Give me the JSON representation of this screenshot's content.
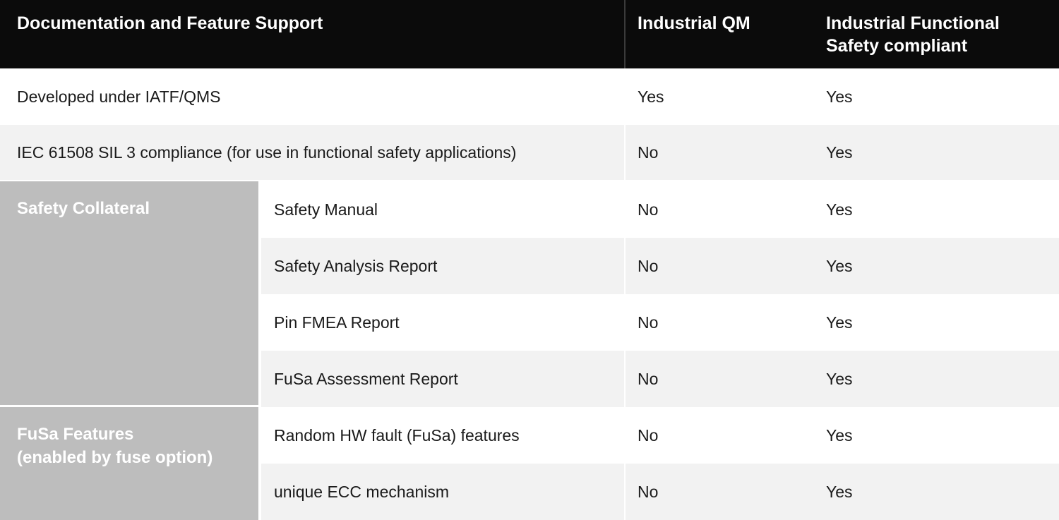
{
  "colors": {
    "header_bg": "#0b0b0b",
    "header_divider": "#3b3b3b",
    "row_stripe": "#f2f2f2",
    "group_panel": "#bdbdbd",
    "text": "#1a1a1a",
    "text_inverse": "#ffffff"
  },
  "table": {
    "header": {
      "feature_col": "Documentation and Feature Support",
      "qm_col": "Industrial QM",
      "fusa_col": "Industrial Functional Safety compliant"
    },
    "rows": [
      {
        "feature": "Developed under IATF/QMS",
        "qm": "Yes",
        "fusa": "Yes"
      },
      {
        "feature": "IEC 61508 SIL 3 compliance (for use in functional safety applications)",
        "qm": "No",
        "fusa": "Yes"
      }
    ],
    "groups": [
      {
        "label_lines": [
          "Safety Collateral"
        ],
        "rows": [
          {
            "feature": "Safety Manual",
            "qm": "No",
            "fusa": "Yes"
          },
          {
            "feature": "Safety Analysis Report",
            "qm": "No",
            "fusa": "Yes"
          },
          {
            "feature": "Pin FMEA Report",
            "qm": "No",
            "fusa": "Yes"
          },
          {
            "feature": "FuSa Assessment Report",
            "qm": "No",
            "fusa": "Yes"
          }
        ]
      },
      {
        "label_lines": [
          "FuSa Features",
          "(enabled by fuse option)"
        ],
        "rows": [
          {
            "feature": "Random HW fault (FuSa) features",
            "qm": "No",
            "fusa": "Yes"
          },
          {
            "feature": "unique ECC mechanism",
            "qm": "No",
            "fusa": "Yes"
          }
        ]
      }
    ]
  }
}
